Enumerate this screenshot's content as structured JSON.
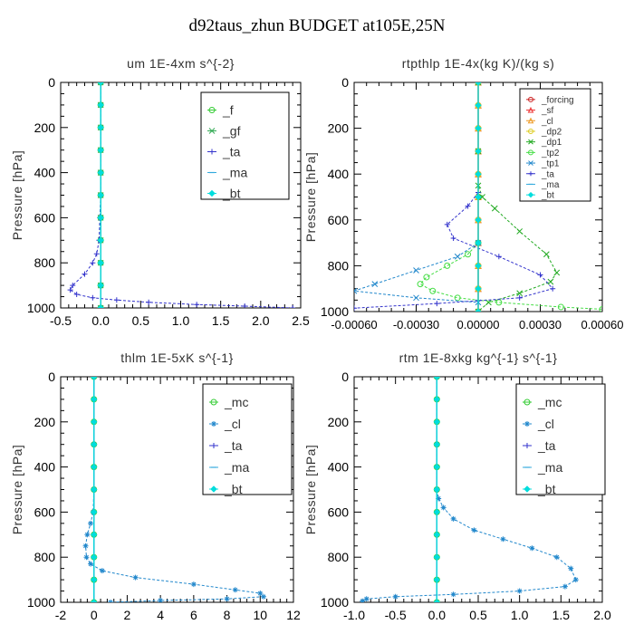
{
  "figure": {
    "title": "d92taus_zhun  BUDGET at105E,25N"
  },
  "chart_data": [
    {
      "type": "line",
      "title": "um  1E-4xm s^{-2}",
      "xlabel": "",
      "ylabel": "Pressure [hPa]",
      "xlim": [
        -0.5,
        2.5
      ],
      "ylim": [
        1000,
        0
      ],
      "xticks": [
        "-0.5",
        "0.0",
        "0.5",
        "1.0",
        "1.5",
        "2.0",
        "2.5"
      ],
      "xtick_values": [
        -0.5,
        0.0,
        0.5,
        1.0,
        1.5,
        2.0,
        2.5
      ],
      "yticks": [
        "0",
        "200",
        "400",
        "600",
        "800",
        "1000"
      ],
      "ytick_values": [
        0,
        200,
        400,
        600,
        800,
        1000
      ],
      "grid": false,
      "legend": "top-right",
      "series": [
        {
          "name": "_f",
          "color": "#33cc33",
          "marker": "circle",
          "x": [
            0,
            0,
            0,
            0,
            0,
            0,
            0,
            0,
            0,
            0,
            0
          ],
          "y": [
            0,
            100,
            200,
            300,
            400,
            500,
            600,
            700,
            800,
            900,
            1000
          ]
        },
        {
          "name": "_gf",
          "color": "#33aa55",
          "marker": "x",
          "x": [
            0,
            0,
            0,
            0,
            0,
            0,
            0,
            0,
            0,
            0,
            0
          ],
          "y": [
            0,
            100,
            200,
            300,
            400,
            500,
            600,
            700,
            800,
            900,
            1000
          ]
        },
        {
          "name": "_ta",
          "color": "#3333cc",
          "marker": "plus",
          "x": [
            0,
            0,
            0,
            -0.01,
            -0.02,
            -0.05,
            -0.1,
            -0.2,
            -0.35,
            -0.38,
            -0.3,
            -0.1,
            0.2,
            0.6,
            1.2,
            1.8,
            2.4
          ],
          "y": [
            0,
            300,
            500,
            600,
            700,
            760,
            800,
            850,
            900,
            920,
            940,
            955,
            965,
            975,
            985,
            992,
            1000
          ]
        },
        {
          "name": "_ma",
          "color": "#33aadd",
          "marker": "dash",
          "x": [
            0,
            0,
            0,
            0,
            0,
            0
          ],
          "y": [
            0,
            200,
            400,
            600,
            800,
            1000
          ]
        },
        {
          "name": "_bt",
          "color": "#00dddd",
          "marker": "diamond",
          "x": [
            0,
            0,
            0,
            0,
            0,
            0,
            0,
            0,
            0,
            0,
            0
          ],
          "y": [
            0,
            100,
            200,
            300,
            400,
            500,
            600,
            700,
            800,
            900,
            1000
          ]
        }
      ]
    },
    {
      "type": "line",
      "title": "rtpthlp  1E-4x(kg K)/(kg s)",
      "xlabel": "",
      "ylabel": "Pressure [hPa]",
      "xlim": [
        -0.0006,
        0.0006
      ],
      "ylim": [
        1000,
        0
      ],
      "xticks": [
        "-0.00060",
        "-0.00030",
        "0.00000",
        "0.00030",
        "0.00060"
      ],
      "xtick_values": [
        -0.0006,
        -0.0003,
        0.0,
        0.0003,
        0.0006
      ],
      "yticks": [
        "0",
        "200",
        "400",
        "600",
        "800",
        "1000"
      ],
      "ytick_values": [
        0,
        200,
        400,
        600,
        800,
        1000
      ],
      "grid": false,
      "legend": "top-right",
      "series": [
        {
          "name": "_forcing",
          "color": "#cc2222",
          "marker": "circle",
          "x": [
            0,
            0,
            0,
            0,
            0,
            0,
            0,
            0,
            0,
            0,
            0
          ],
          "y": [
            0,
            100,
            200,
            300,
            400,
            500,
            600,
            700,
            800,
            900,
            1000
          ]
        },
        {
          "name": "_sf",
          "color": "#ee3333",
          "marker": "triangle",
          "x": [
            0,
            0,
            0,
            0,
            0,
            0,
            0,
            0,
            0,
            0,
            0
          ],
          "y": [
            0,
            100,
            200,
            300,
            400,
            500,
            600,
            700,
            800,
            900,
            1000
          ]
        },
        {
          "name": "_cl",
          "color": "#ee9922",
          "marker": "triangle",
          "x": [
            0,
            0,
            0,
            0,
            0,
            0,
            0,
            0,
            0,
            0,
            0
          ],
          "y": [
            0,
            100,
            200,
            300,
            400,
            500,
            600,
            700,
            800,
            900,
            1000
          ]
        },
        {
          "name": "_dp2",
          "color": "#ddcc22",
          "marker": "circle",
          "x": [
            0,
            0,
            0,
            0,
            0,
            0,
            0,
            0,
            0,
            0,
            0
          ],
          "y": [
            0,
            100,
            200,
            300,
            400,
            500,
            600,
            700,
            800,
            900,
            1000
          ]
        },
        {
          "name": "_dp1",
          "color": "#22aa22",
          "marker": "x",
          "x": [
            0,
            0,
            0,
            2e-05,
            8e-05,
            0.0002,
            0.00033,
            0.00038,
            0.00035,
            0.0002,
            5e-05,
            0
          ],
          "y": [
            0,
            300,
            450,
            500,
            550,
            650,
            750,
            830,
            870,
            920,
            960,
            1000
          ]
        },
        {
          "name": "_tp2",
          "color": "#44dd44",
          "marker": "circle",
          "x": [
            0,
            -5e-05,
            -0.00015,
            -0.00025,
            -0.00028,
            -0.00022,
            -0.0001,
            0.0001,
            0.0004,
            0.0006
          ],
          "y": [
            700,
            750,
            800,
            850,
            880,
            910,
            940,
            960,
            980,
            990
          ]
        },
        {
          "name": "_tp1",
          "color": "#2288cc",
          "marker": "x",
          "x": [
            0,
            -0.0001,
            -0.0003,
            -0.0005,
            -0.0006,
            -0.0003,
            0
          ],
          "y": [
            700,
            760,
            820,
            880,
            910,
            940,
            960
          ]
        },
        {
          "name": "_ta",
          "color": "#3333cc",
          "marker": "plus",
          "x": [
            0,
            -5e-05,
            -0.00015,
            -0.00012,
            0.0001,
            0.0003,
            0.00036,
            0.0002,
            -0.0002,
            -0.0006
          ],
          "y": [
            480,
            540,
            620,
            680,
            760,
            840,
            900,
            940,
            965,
            985
          ]
        },
        {
          "name": "_ma",
          "color": "#33aadd",
          "marker": "dash",
          "x": [
            0,
            0,
            0,
            0,
            0,
            0
          ],
          "y": [
            0,
            200,
            400,
            600,
            800,
            1000
          ]
        },
        {
          "name": "_bt",
          "color": "#00dddd",
          "marker": "diamond",
          "x": [
            0,
            0,
            0,
            0,
            0,
            0,
            0,
            0,
            0,
            0,
            0
          ],
          "y": [
            0,
            100,
            200,
            300,
            400,
            500,
            600,
            700,
            800,
            900,
            1000
          ]
        }
      ]
    },
    {
      "type": "line",
      "title": "thlm  1E-5xK s^{-1}",
      "xlabel": "",
      "ylabel": "Pressure [hPa]",
      "xlim": [
        -2,
        12
      ],
      "ylim": [
        1000,
        0
      ],
      "xticks": [
        "-2",
        "0",
        "2",
        "4",
        "6",
        "8",
        "10",
        "12"
      ],
      "xtick_values": [
        -2,
        0,
        2,
        4,
        6,
        8,
        10,
        12
      ],
      "yticks": [
        "0",
        "200",
        "400",
        "600",
        "800",
        "1000"
      ],
      "ytick_values": [
        0,
        200,
        400,
        600,
        800,
        1000
      ],
      "grid": false,
      "legend": "top-right",
      "series": [
        {
          "name": "_mc",
          "color": "#33cc33",
          "marker": "circle",
          "x": [
            0,
            0,
            0,
            0,
            0,
            0,
            0,
            0,
            0,
            0,
            0
          ],
          "y": [
            0,
            100,
            200,
            300,
            400,
            500,
            600,
            700,
            800,
            900,
            1000
          ]
        },
        {
          "name": "_cl",
          "color": "#2288cc",
          "marker": "star",
          "x": [
            0,
            0,
            0,
            -0.05,
            -0.2,
            -0.4,
            -0.5,
            -0.45,
            -0.2,
            0.5,
            2.5,
            6,
            8.5,
            10,
            10.2,
            8,
            4,
            1
          ],
          "y": [
            0,
            300,
            500,
            600,
            650,
            700,
            750,
            800,
            830,
            860,
            890,
            920,
            945,
            960,
            975,
            985,
            992,
            1000
          ]
        },
        {
          "name": "_ta",
          "color": "#3333cc",
          "marker": "plus",
          "x": [
            0,
            0,
            0,
            0,
            0,
            0
          ],
          "y": [
            0,
            200,
            400,
            600,
            800,
            1000
          ]
        },
        {
          "name": "_ma",
          "color": "#33aadd",
          "marker": "dash",
          "x": [
            0,
            0,
            0,
            0,
            0,
            0
          ],
          "y": [
            0,
            200,
            400,
            600,
            800,
            1000
          ]
        },
        {
          "name": "_bt",
          "color": "#00dddd",
          "marker": "diamond",
          "x": [
            0,
            0,
            0,
            0,
            0,
            0,
            0,
            0,
            0,
            0,
            0
          ],
          "y": [
            0,
            100,
            200,
            300,
            400,
            500,
            600,
            700,
            800,
            900,
            1000
          ]
        }
      ]
    },
    {
      "type": "line",
      "title": "rtm  1E-8xkg kg^{-1} s^{-1}",
      "xlabel": "",
      "ylabel": "Pressure [hPa]",
      "xlim": [
        -1.0,
        2.0
      ],
      "ylim": [
        1000,
        0
      ],
      "xticks": [
        "-1.0",
        "-0.5",
        "0.0",
        "0.5",
        "1.0",
        "1.5",
        "2.0"
      ],
      "xtick_values": [
        -1.0,
        -0.5,
        0.0,
        0.5,
        1.0,
        1.5,
        2.0
      ],
      "yticks": [
        "0",
        "200",
        "400",
        "600",
        "800",
        "1000"
      ],
      "ytick_values": [
        0,
        200,
        400,
        600,
        800,
        1000
      ],
      "grid": false,
      "legend": "top-right",
      "series": [
        {
          "name": "_mc",
          "color": "#33cc33",
          "marker": "circle",
          "x": [
            0,
            0,
            0,
            0,
            0,
            0,
            0,
            0,
            0,
            0,
            0
          ],
          "y": [
            0,
            100,
            200,
            300,
            400,
            500,
            600,
            700,
            800,
            900,
            1000
          ]
        },
        {
          "name": "_cl",
          "color": "#2288cc",
          "marker": "star",
          "x": [
            0,
            0,
            0,
            0.02,
            0.08,
            0.2,
            0.45,
            0.8,
            1.15,
            1.45,
            1.62,
            1.68,
            1.55,
            1.0,
            0.2,
            -0.5,
            -0.85,
            -0.9
          ],
          "y": [
            0,
            300,
            500,
            540,
            580,
            630,
            680,
            720,
            760,
            800,
            850,
            900,
            930,
            950,
            965,
            975,
            985,
            995
          ]
        },
        {
          "name": "_ta",
          "color": "#3333cc",
          "marker": "plus",
          "x": [
            0,
            0,
            0,
            0,
            0,
            0
          ],
          "y": [
            0,
            200,
            400,
            600,
            800,
            1000
          ]
        },
        {
          "name": "_ma",
          "color": "#33aadd",
          "marker": "dash",
          "x": [
            0,
            0,
            0,
            0,
            0,
            0
          ],
          "y": [
            0,
            200,
            400,
            600,
            800,
            1000
          ]
        },
        {
          "name": "_bt",
          "color": "#00dddd",
          "marker": "diamond",
          "x": [
            0,
            0,
            0,
            0,
            0,
            0,
            0,
            0,
            0,
            0,
            0
          ],
          "y": [
            0,
            100,
            200,
            300,
            400,
            500,
            600,
            700,
            800,
            900,
            1000
          ]
        }
      ]
    }
  ]
}
